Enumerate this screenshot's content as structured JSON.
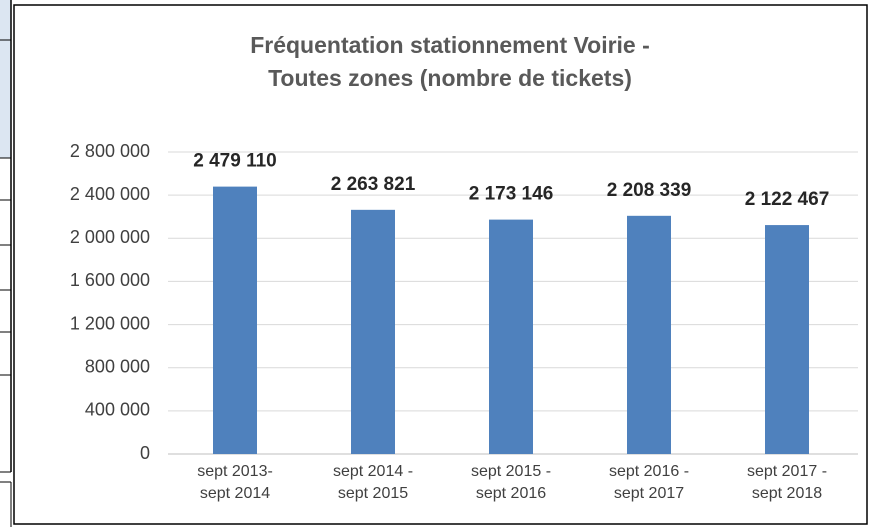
{
  "chart_data": {
    "type": "bar",
    "title": [
      "Fréquentation stationnement Voirie -",
      "Toutes zones (nombre de tickets)"
    ],
    "categories": [
      [
        "sept 2013-",
        "sept 2014"
      ],
      [
        "sept 2014 -",
        "sept 2015"
      ],
      [
        "sept 2015 -",
        "sept 2016"
      ],
      [
        "sept 2016 -",
        "sept 2017"
      ],
      [
        "sept 2017 -",
        "sept 2018"
      ]
    ],
    "values": [
      2479110,
      2263821,
      2173146,
      2208339,
      2122467
    ],
    "value_labels": [
      "2 479 110",
      "2 263 821",
      "2 173 146",
      "2 208 339",
      "2 122 467"
    ],
    "color": "#4f81bd",
    "ylim": [
      0,
      2800000
    ],
    "yticks": [
      0,
      {
        "value": 400000,
        "label": "400 000"
      },
      {
        "value": 800000,
        "label": "800 000"
      },
      {
        "value": 1200000,
        "label": "1 200 000"
      },
      {
        "value": 1600000,
        "label": "1 600 000"
      },
      {
        "value": 2000000,
        "label": "2 000 000"
      },
      {
        "value": 2400000,
        "label": "2 400 000"
      },
      {
        "value": 2800000,
        "label": "2 800 000"
      }
    ],
    "grid": true
  }
}
